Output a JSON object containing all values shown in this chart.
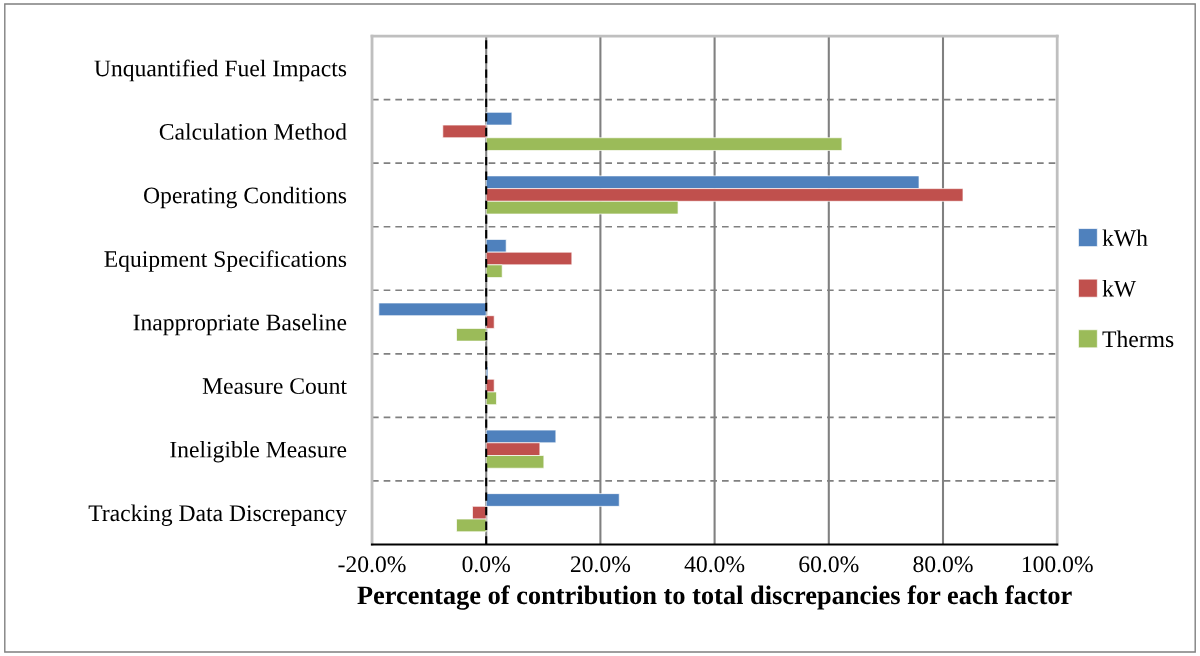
{
  "chart_data": {
    "type": "bar",
    "orientation": "horizontal",
    "xlabel": "Percentage of contribution to total discrepancies for each factor",
    "categories": [
      "Unquantified Fuel Impacts",
      "Calculation Method",
      "Operating Conditions",
      "Equipment Specifications",
      "Inappropriate Baseline",
      "Measure Count",
      "Ineligible Measure",
      "Tracking Data Discrepancy"
    ],
    "series": [
      {
        "name": "kWh",
        "color": "#4f81bd",
        "values": [
          null,
          4.5,
          75.8,
          3.5,
          -18.8,
          0.3,
          12.2,
          23.3
        ]
      },
      {
        "name": "kW",
        "color": "#c0504d",
        "values": [
          null,
          -7.6,
          83.5,
          15.0,
          1.4,
          1.4,
          9.4,
          -2.4
        ]
      },
      {
        "name": "Therms",
        "color": "#9bbb59",
        "values": [
          null,
          62.3,
          33.6,
          2.8,
          -5.2,
          1.8,
          10.1,
          -5.2
        ]
      }
    ],
    "xlim": [
      -20,
      100
    ],
    "xticks": [
      {
        "value": -20,
        "label": "-20.0%"
      },
      {
        "value": 0,
        "label": "0.0%"
      },
      {
        "value": 20,
        "label": "20.0%"
      },
      {
        "value": 40,
        "label": "40.0%"
      },
      {
        "value": 60,
        "label": "60.0%"
      },
      {
        "value": 80,
        "label": "80.0%"
      },
      {
        "value": 100,
        "label": "100.0%"
      }
    ],
    "ref_lines": [
      {
        "axis": "x",
        "value": 0,
        "color": "#000000",
        "line_style": "dashed"
      }
    ],
    "grid": true,
    "legend": "right"
  }
}
